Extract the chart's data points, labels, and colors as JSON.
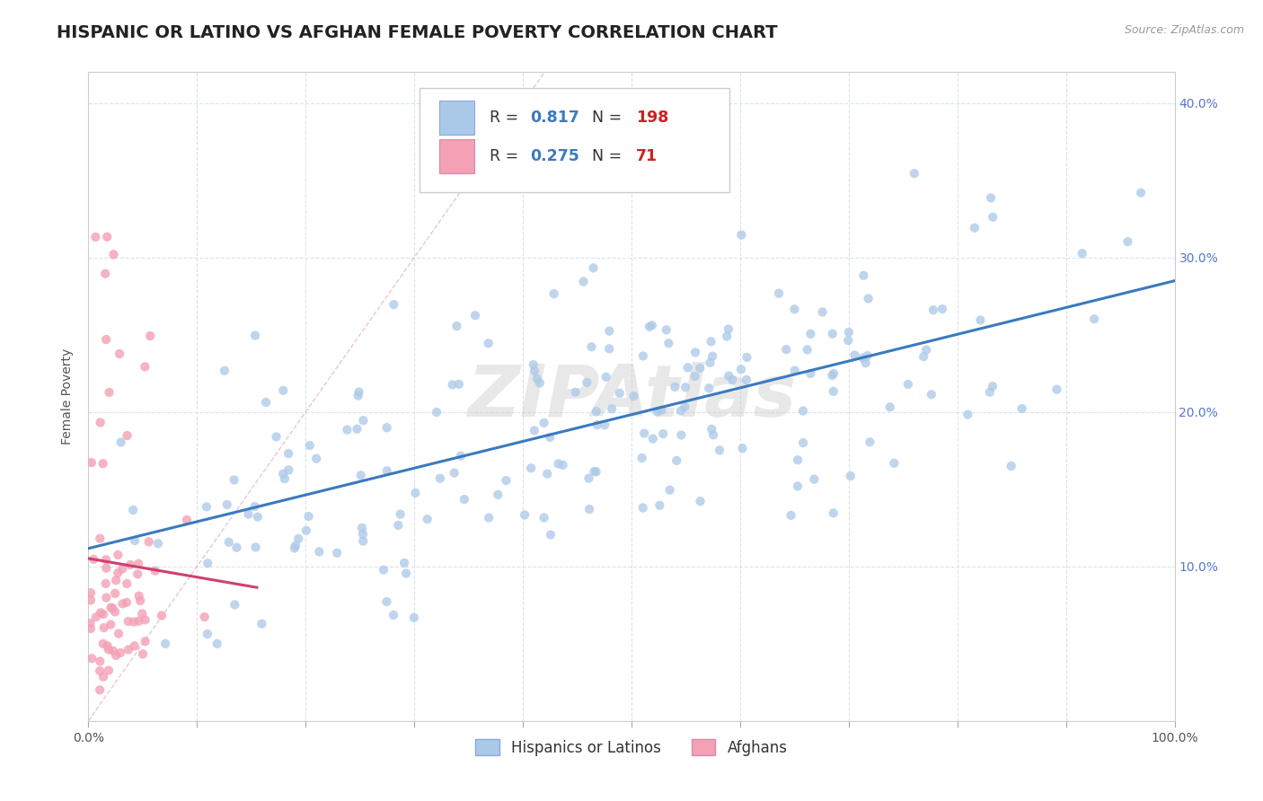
{
  "title": "HISPANIC OR LATINO VS AFGHAN FEMALE POVERTY CORRELATION CHART",
  "source": "Source: ZipAtlas.com",
  "ylabel": "Female Poverty",
  "xlim": [
    0,
    1.0
  ],
  "ylim": [
    0,
    0.42
  ],
  "hispanic_R": 0.817,
  "hispanic_N": 198,
  "afghan_R": 0.275,
  "afghan_N": 71,
  "hispanic_color": "#aac8e8",
  "afghan_color": "#f4a0b5",
  "hispanic_line_color": "#3a7abf",
  "afghan_line_color": "#d04070",
  "diagonal_color": "#e0a0b0",
  "legend_label_1": "Hispanics or Latinos",
  "legend_label_2": "Afghans",
  "background_color": "#ffffff",
  "watermark": "ZIPAtlas",
  "title_fontsize": 14,
  "axis_label_fontsize": 10,
  "tick_fontsize": 10,
  "r_color": "#3a7abf",
  "n_color": "#cc2222"
}
